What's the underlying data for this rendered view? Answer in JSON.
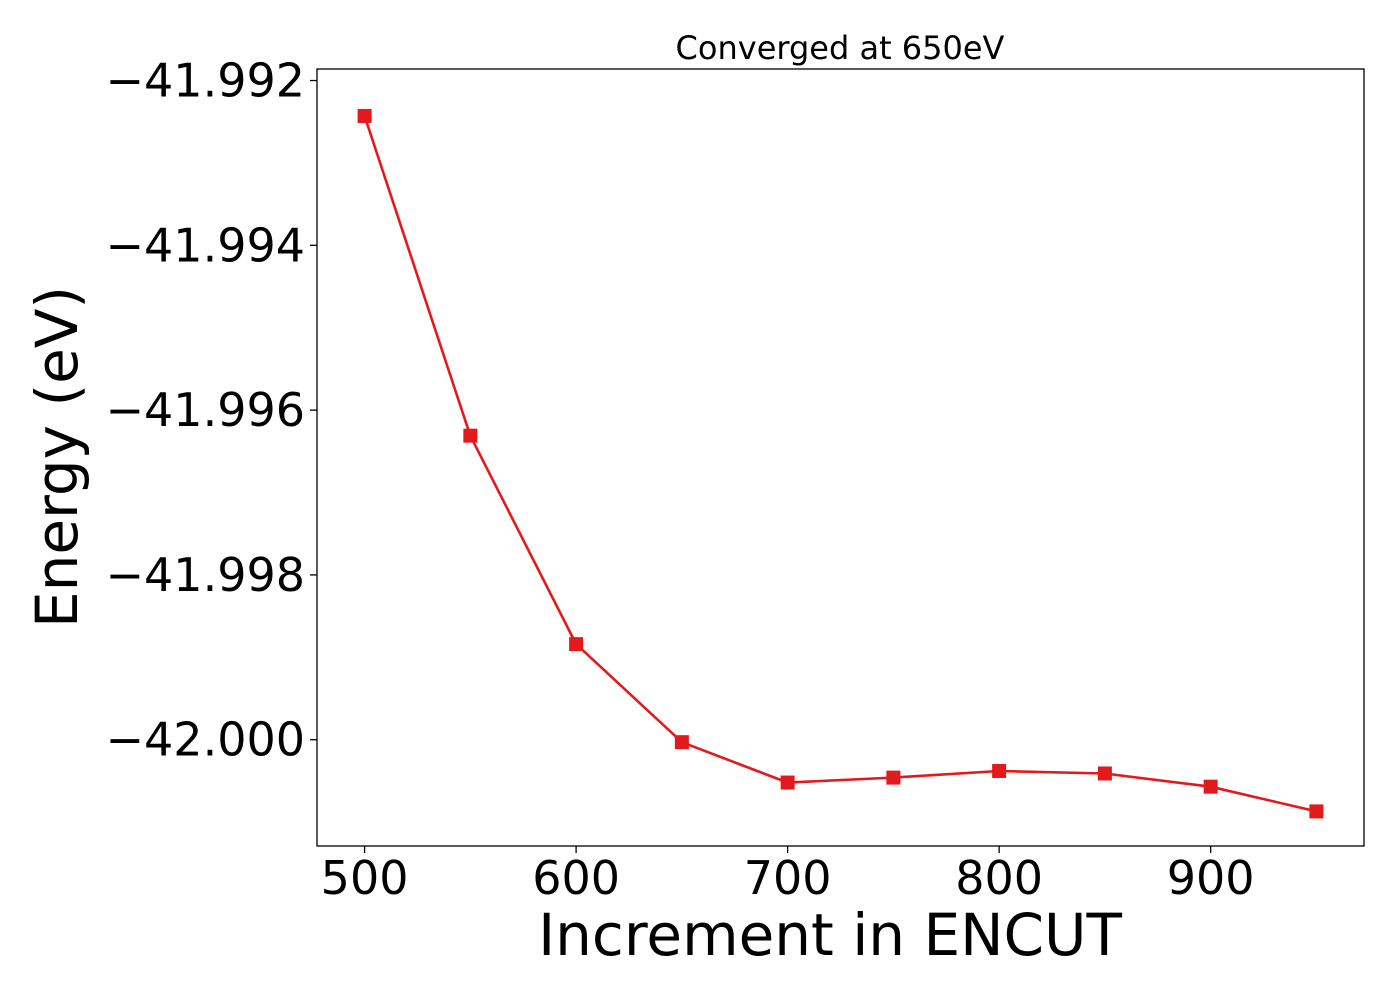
{
  "chart_data": {
    "type": "line",
    "title": "Converged at 650eV",
    "xlabel": "Increment in ENCUT",
    "ylabel": "Energy (eV)",
    "x_ticks": [
      500,
      600,
      700,
      800,
      900
    ],
    "x_tick_labels": [
      "500",
      "600",
      "700",
      "800",
      "900"
    ],
    "y_ticks": [
      -41.992,
      -41.994,
      -41.996,
      -41.998,
      -42.0
    ],
    "y_tick_labels": [
      "−41.992",
      "−41.994",
      "−41.996",
      "−41.998",
      "−42.000"
    ],
    "xlim": [
      477.5,
      972.5
    ],
    "ylim": [
      -42.00129,
      -41.99186
    ],
    "grid": false,
    "legend": null,
    "series": [
      {
        "color": "#e31a1c",
        "marker": "square",
        "x": [
          500,
          550,
          600,
          650,
          700,
          750,
          800,
          850,
          900,
          950
        ],
        "y": [
          -41.99243,
          -41.99631,
          -41.99884,
          -42.00003,
          -42.00052,
          -42.00046,
          -42.00038,
          -42.00041,
          -42.00057,
          -42.00087
        ]
      }
    ]
  }
}
